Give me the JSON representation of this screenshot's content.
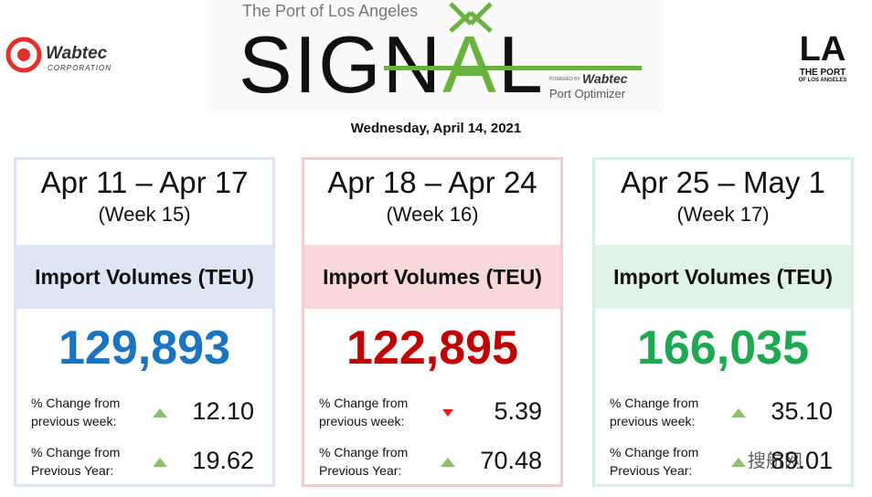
{
  "header": {
    "left_logo": {
      "name": "Wabtec",
      "subtitle": "CORPORATION"
    },
    "center_logo": {
      "top_line": "The Port of Los Angeles",
      "word_parts": [
        "SIGN",
        "A",
        "L"
      ],
      "powered_by": "POWERED BY",
      "brand": "Wabtec",
      "product": "Port Optimizer"
    },
    "right_logo": {
      "mark": "LA",
      "line1": "THE PORT",
      "line2": "OF LOS ANGELES"
    },
    "date": "Wednesday, April 14, 2021"
  },
  "cards": [
    {
      "range": "Apr 11 – Apr 17",
      "week": "(Week 15)",
      "heading": "Import Volumes (TEU)",
      "value": "129,893",
      "value_color": "#1a74c1",
      "band_color": "#dfe4f7",
      "border_color": "#dfe2f3",
      "rows": [
        {
          "label1": "% Change from",
          "label2": "previous week:",
          "direction": "up",
          "value": "12.10"
        },
        {
          "label1": "% Change from",
          "label2": "Previous Year:",
          "direction": "up",
          "value": "19.62"
        }
      ]
    },
    {
      "range": "Apr 18 – Apr 24",
      "week": "(Week 16)",
      "heading": "Import Volumes (TEU)",
      "value": "122,895",
      "value_color": "#c00000",
      "band_color": "#f8d8d9",
      "border_color": "#f3cdd0",
      "rows": [
        {
          "label1": "% Change from",
          "label2": "previous week:",
          "direction": "down",
          "value": "5.39"
        },
        {
          "label1": "% Change from",
          "label2": "Previous Year:",
          "direction": "up",
          "value": "70.48"
        }
      ]
    },
    {
      "range": "Apr 25 – May 1",
      "week": "(Week 17)",
      "heading": "Import Volumes (TEU)",
      "value": "166,035",
      "value_color": "#1fa852",
      "band_color": "#dff3e6",
      "border_color": "#d7efe2",
      "rows": [
        {
          "label1": "% Change from",
          "label2": "previous week:",
          "direction": "up",
          "value": "35.10"
        },
        {
          "label1": "% Change from",
          "label2": "Previous Year:",
          "direction": "up",
          "value": "89.01"
        }
      ]
    }
  ],
  "watermark": "搜航网"
}
